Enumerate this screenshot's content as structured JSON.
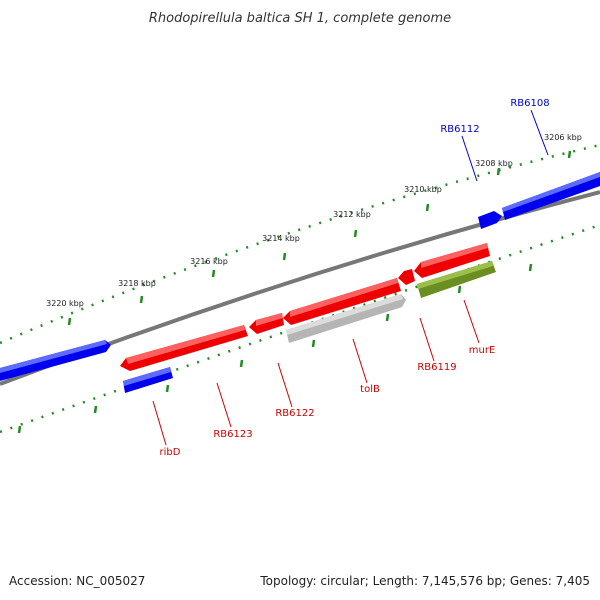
{
  "title": "Rhodopirellula baltica SH 1, complete genome",
  "footer": {
    "accession": "Accession: NC_005027",
    "stats": "Topology: circular; Length: 7,145,576 bp; Genes: 7,405"
  },
  "scale_labels": [
    "3206 kbp",
    "3208 kbp",
    "3210 kbp",
    "3212 kbp",
    "3214 kbp",
    "3216 kbp",
    "3218 kbp",
    "3220 kbp"
  ],
  "colors": {
    "forward_strand": "#0000ee",
    "reverse_strand": "#ee0000",
    "grey_gene": "#bbbbbb",
    "olive_gene": "#6b8e23",
    "backbone": "#777777",
    "tick": "#228b22"
  },
  "genes": [
    {
      "label": "RB6108",
      "strand": "forward"
    },
    {
      "label": "RB6112",
      "strand": "forward"
    },
    {
      "label": "RB6119",
      "strand": "reverse"
    },
    {
      "label": "murE",
      "strand": "reverse"
    },
    {
      "label": "tolB",
      "strand": "reverse"
    },
    {
      "label": "RB6122",
      "strand": "reverse"
    },
    {
      "label": "RB6123",
      "strand": "reverse"
    },
    {
      "label": "ribD",
      "strand": "reverse"
    }
  ]
}
